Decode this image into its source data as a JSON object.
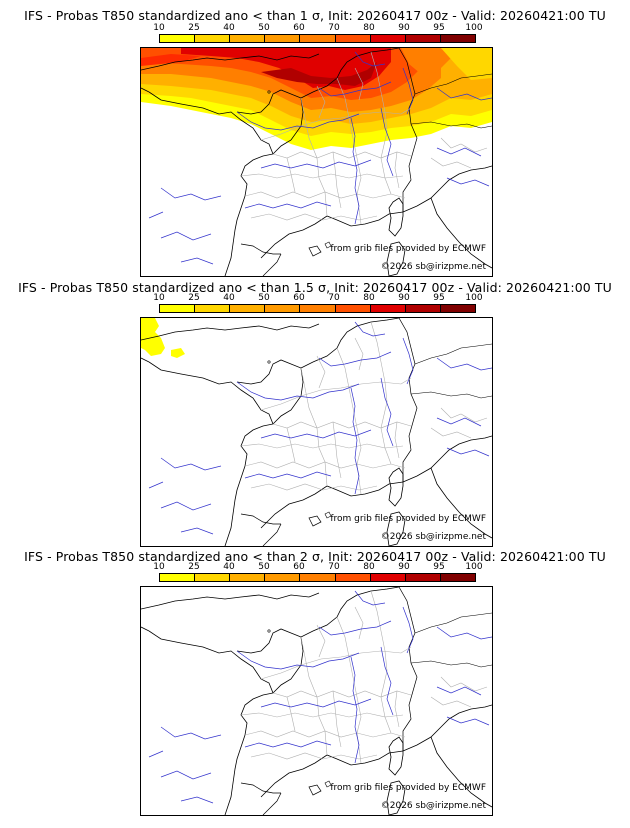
{
  "colorbar": {
    "labels": [
      "10",
      "25",
      "40",
      "50",
      "60",
      "70",
      "80",
      "90",
      "95",
      "100"
    ],
    "colors": [
      "#ffff00",
      "#ffd700",
      "#ffb000",
      "#ff9a00",
      "#ff7f00",
      "#ff5000",
      "#e00000",
      "#b00000",
      "#800000",
      "#500000"
    ]
  },
  "panels": [
    {
      "title": "IFS - Probas T850  standardized ano < than 1 σ, Init: 20260417 00z - Valid: 20260421:00 TU",
      "credit_grib": "from grib files provided by ECMWF",
      "credit_copy": "©2026 sb@irizpme.net"
    },
    {
      "title": "IFS - Probas T850  standardized ano < than 1.5 σ, Init: 20260417 00z - Valid: 20260421:00 TU",
      "credit_grib": "from grib files provided by ECMWF",
      "credit_copy": "©2026 sb@irizpme.net"
    },
    {
      "title": "IFS - Probas T850  standardized ano < than 2 σ, Init: 20260417 00z - Valid: 20260421:00 TU",
      "credit_grib": "from grib files provided by ECMWF",
      "credit_copy": "©2026 sb@irizpme.net"
    }
  ],
  "probability_fields": [
    {
      "coverage": "north of ~49N: yellow-orange band, red/dark-red over Benelux & N France"
    },
    {
      "coverage": "small yellow patch over SW England / Channel"
    },
    {
      "coverage": "none"
    }
  ]
}
